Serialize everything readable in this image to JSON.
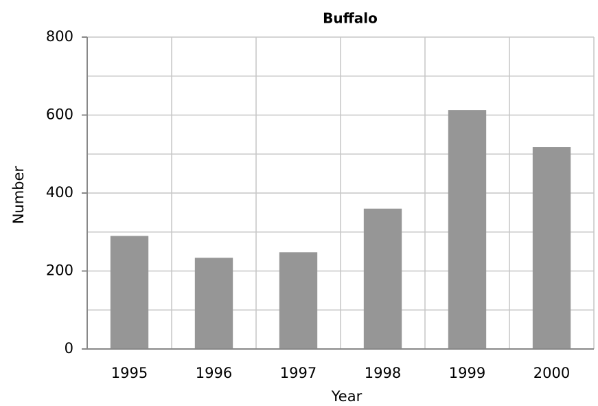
{
  "chart_data": {
    "type": "bar",
    "title": "Buffalo",
    "x_label": "Year",
    "y_label": "Number",
    "categories": [
      "1995",
      "1996",
      "1997",
      "1998",
      "1999",
      "2000"
    ],
    "values": [
      290,
      234,
      248,
      360,
      613,
      518
    ],
    "color": "#969696",
    "ylim": [
      0,
      800
    ],
    "yticks": [
      0,
      200,
      400,
      600,
      800
    ],
    "grid": true
  }
}
